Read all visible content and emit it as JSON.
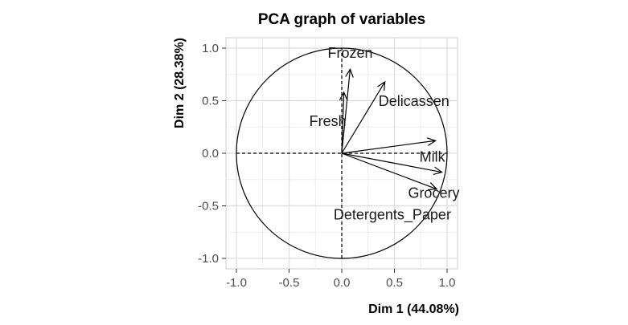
{
  "chart_data": {
    "type": "scatter",
    "subtype": "pca-correlation-circle",
    "title": "PCA graph of variables",
    "xlabel": "Dim 1 (44.08%)",
    "ylabel": "Dim 2 (28.38%)",
    "xlim": [
      -1.0,
      1.0
    ],
    "ylim": [
      -1.0,
      1.0
    ],
    "xticks": [
      -1.0,
      -0.5,
      0.0,
      0.5,
      1.0
    ],
    "yticks": [
      -1.0,
      -0.5,
      0.0,
      0.5,
      1.0
    ],
    "xtick_labels": [
      "-1.0",
      "-0.5",
      "0.0",
      "0.5",
      "1.0"
    ],
    "ytick_labels": [
      "-1.0",
      "-0.5",
      "0.0",
      "0.5",
      "1.0"
    ],
    "grid": true,
    "unit_circle": true,
    "variables": [
      {
        "name": "Frozen",
        "x": 0.08,
        "y": 0.8
      },
      {
        "name": "Fresh",
        "x": 0.02,
        "y": 0.58
      },
      {
        "name": "Delicassen",
        "x": 0.41,
        "y": 0.68
      },
      {
        "name": "Milk",
        "x": 0.89,
        "y": 0.12
      },
      {
        "name": "Grocery",
        "x": 0.95,
        "y": -0.18
      },
      {
        "name": "Detergents_Paper",
        "x": 0.9,
        "y": -0.34
      }
    ]
  }
}
